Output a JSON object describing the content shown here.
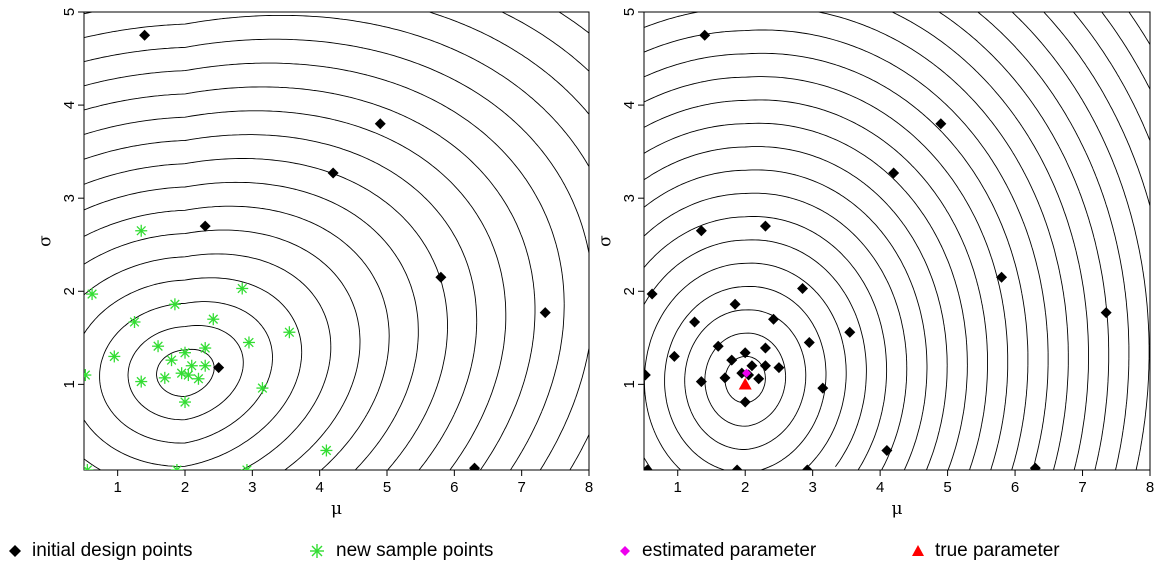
{
  "chart_data": [
    {
      "type": "scatter",
      "background": "contour",
      "title": "",
      "xlabel": "μ",
      "ylabel": "σ",
      "xlim": [
        0.5,
        8
      ],
      "ylim": [
        0.08,
        5
      ],
      "xticks": [
        "1",
        "2",
        "3",
        "4",
        "5",
        "6",
        "7",
        "8"
      ],
      "yticks": [
        "1",
        "2",
        "3",
        "4",
        "5"
      ],
      "series": [
        {
          "name": "initial design points",
          "marker": "diamond",
          "color": "#000000",
          "points": [
            [
              1.4,
              4.75
            ],
            [
              4.9,
              3.8
            ],
            [
              4.2,
              3.27
            ],
            [
              2.3,
              2.7
            ],
            [
              5.8,
              2.15
            ],
            [
              7.35,
              1.77
            ],
            [
              2.5,
              1.18
            ],
            [
              6.3,
              0.1
            ]
          ]
        },
        {
          "name": "new sample points",
          "marker": "asterisk",
          "color": "#33dd33",
          "points": [
            [
              1.35,
              2.65
            ],
            [
              0.62,
              1.97
            ],
            [
              2.85,
              2.03
            ],
            [
              1.85,
              1.86
            ],
            [
              1.25,
              1.67
            ],
            [
              2.42,
              1.7
            ],
            [
              3.55,
              1.56
            ],
            [
              1.6,
              1.41
            ],
            [
              2.0,
              1.34
            ],
            [
              2.3,
              1.39
            ],
            [
              2.95,
              1.45
            ],
            [
              0.95,
              1.3
            ],
            [
              1.8,
              1.26
            ],
            [
              2.1,
              1.2
            ],
            [
              2.3,
              1.2
            ],
            [
              2.05,
              1.1
            ],
            [
              1.35,
              1.03
            ],
            [
              1.7,
              1.07
            ],
            [
              2.2,
              1.06
            ],
            [
              0.52,
              1.1
            ],
            [
              1.95,
              1.12
            ],
            [
              3.15,
              0.96
            ],
            [
              2.0,
              0.81
            ],
            [
              4.1,
              0.29
            ],
            [
              0.55,
              0.08
            ],
            [
              1.88,
              0.08
            ],
            [
              2.92,
              0.08
            ]
          ]
        }
      ],
      "contour_center": [
        2.0,
        1.12
      ]
    },
    {
      "type": "scatter",
      "background": "contour",
      "title": "",
      "xlabel": "μ",
      "ylabel": "σ",
      "xlim": [
        0.5,
        8
      ],
      "ylim": [
        0.08,
        5
      ],
      "xticks": [
        "1",
        "2",
        "3",
        "4",
        "5",
        "6",
        "7",
        "8"
      ],
      "yticks": [
        "1",
        "2",
        "3",
        "4",
        "5"
      ],
      "series": [
        {
          "name": "initial design points",
          "marker": "diamond",
          "color": "#000000",
          "points": [
            [
              1.4,
              4.75
            ],
            [
              4.9,
              3.8
            ],
            [
              4.2,
              3.27
            ],
            [
              2.3,
              2.7
            ],
            [
              5.8,
              2.15
            ],
            [
              7.35,
              1.77
            ],
            [
              2.5,
              1.18
            ],
            [
              6.3,
              0.1
            ],
            [
              1.35,
              2.65
            ],
            [
              0.62,
              1.97
            ],
            [
              2.85,
              2.03
            ],
            [
              1.85,
              1.86
            ],
            [
              1.25,
              1.67
            ],
            [
              2.42,
              1.7
            ],
            [
              3.55,
              1.56
            ],
            [
              1.6,
              1.41
            ],
            [
              2.0,
              1.34
            ],
            [
              2.3,
              1.39
            ],
            [
              2.95,
              1.45
            ],
            [
              0.95,
              1.3
            ],
            [
              1.8,
              1.26
            ],
            [
              2.1,
              1.2
            ],
            [
              2.3,
              1.2
            ],
            [
              2.05,
              1.1
            ],
            [
              1.35,
              1.03
            ],
            [
              1.7,
              1.07
            ],
            [
              2.2,
              1.06
            ],
            [
              0.52,
              1.1
            ],
            [
              1.95,
              1.12
            ],
            [
              3.15,
              0.96
            ],
            [
              2.0,
              0.81
            ],
            [
              4.1,
              0.29
            ],
            [
              0.55,
              0.08
            ],
            [
              1.88,
              0.08
            ],
            [
              2.92,
              0.08
            ]
          ]
        },
        {
          "name": "estimated parameter",
          "marker": "diamond",
          "color": "#ee00ee",
          "points": [
            [
              2.02,
              1.12
            ]
          ]
        },
        {
          "name": "true parameter",
          "marker": "triangle",
          "color": "#ff0000",
          "points": [
            [
              2.0,
              1.0
            ]
          ]
        }
      ],
      "contour_center": [
        2.0,
        1.05
      ]
    }
  ],
  "legend": [
    {
      "label": "initial design points",
      "marker": "diamond",
      "color": "#000000"
    },
    {
      "label": "new sample points",
      "marker": "asterisk",
      "color": "#33dd33"
    },
    {
      "label": "estimated parameter",
      "marker": "diamond",
      "color": "#ee00ee"
    },
    {
      "label": "true parameter",
      "marker": "triangle",
      "color": "#ff0000"
    }
  ]
}
